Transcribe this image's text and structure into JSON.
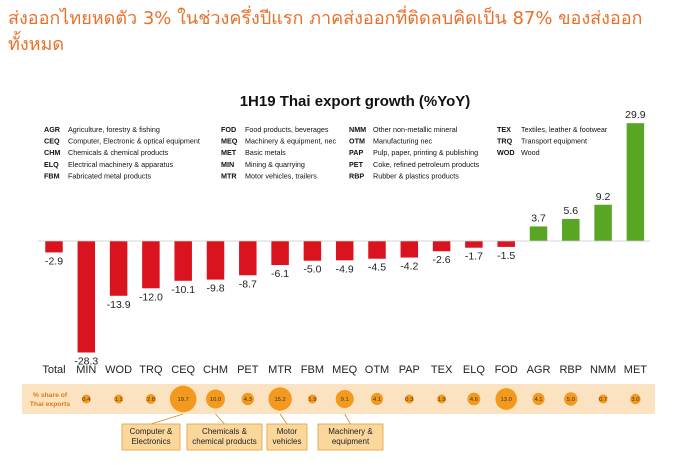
{
  "headline": "ส่งออกไทยหดตัว 3% ในช่วงครึ่งปีแรก ภาคส่งออกที่ติดลบคิดเป็น 87% ของส่งออกทั้งหมด",
  "chart_data": {
    "type": "bar",
    "title": "1H19 Thai export growth (%YoY)",
    "categories": [
      "Total",
      "MIN",
      "WOD",
      "TRQ",
      "CEQ",
      "CHM",
      "PET",
      "MTR",
      "FBM",
      "MEQ",
      "OTM",
      "PAP",
      "TEX",
      "ELQ",
      "FOD",
      "AGR",
      "RBP",
      "NMM",
      "MET"
    ],
    "values": [
      -2.9,
      -28.3,
      -13.9,
      -12.0,
      -10.1,
      -9.8,
      -8.7,
      -6.1,
      -5.0,
      -4.9,
      -4.5,
      -4.2,
      -2.6,
      -1.7,
      -1.5,
      3.7,
      5.6,
      9.2,
      29.9
    ],
    "value_labels": [
      "-2.9",
      "-28.3",
      "-13.9",
      "-12.0",
      "-10.1",
      "-9.8",
      "-8.7",
      "-6.1",
      "-5.0",
      "-4.9",
      "-4.5",
      "-4.2",
      "-2.6",
      "-1.7",
      "-1.5",
      "3.7",
      "5.6",
      "9.2",
      "29.9"
    ],
    "colors": {
      "negative": "#d9141e",
      "positive": "#58a623",
      "bubble": "#f39a1e",
      "band": "#fbe3c2",
      "callout": "#fcd79b"
    },
    "share_label": [
      "% share of",
      "Thai exports"
    ],
    "share_values": [
      0.4,
      1.1,
      2.8,
      19.7,
      10.0,
      4.3,
      15.2,
      1.9,
      9.1,
      4.1,
      0.3,
      1.9,
      4.6,
      13.0,
      4.1,
      5.0,
      0.7,
      3.0
    ],
    "share_labels": [
      "0.4",
      "1.1",
      "2.8",
      "19.7",
      "10.0",
      "4.3",
      "15.2",
      "1.9",
      "9.1",
      "4.1",
      "0.3",
      "1.9",
      "4.6",
      "13.0",
      "4.1",
      "5.0",
      "0.7",
      "3.0"
    ],
    "legend": [
      [
        {
          "code": "AGR",
          "desc": "Agriculture, forestry & fishing"
        },
        {
          "code": "CEQ",
          "desc": "Computer, Electronic & optical equipment"
        },
        {
          "code": "CHM",
          "desc": "Chemicals & chemical products"
        },
        {
          "code": "ELQ",
          "desc": "Electrical machinery & apparatus"
        },
        {
          "code": "FBM",
          "desc": "Fabricated metal products"
        }
      ],
      [
        {
          "code": "FOD",
          "desc": "Food products, beverages"
        },
        {
          "code": "MEQ",
          "desc": "Machinery & equipment, nec"
        },
        {
          "code": "MET",
          "desc": "Basic metals"
        },
        {
          "code": "MIN",
          "desc": "Mining & quarrying"
        },
        {
          "code": "MTR",
          "desc": "Motor vehicles, trailers"
        }
      ],
      [
        {
          "code": "NMM",
          "desc": "Other non-metallic mineral"
        },
        {
          "code": "OTM",
          "desc": "Manufacturing nec"
        },
        {
          "code": "PAP",
          "desc": "Pulp, paper, printing & publishing"
        },
        {
          "code": "PET",
          "desc": "Coke, refined petroleum products"
        },
        {
          "code": "RBP",
          "desc": "Rubber & plastics products"
        }
      ],
      [
        {
          "code": "TEX",
          "desc": "Textiles, leather & footwear"
        },
        {
          "code": "TRQ",
          "desc": "Transport equipment"
        },
        {
          "code": "WOD",
          "desc": "Wood"
        }
      ]
    ],
    "callouts": [
      {
        "lines": [
          "Computer &",
          "Electronics"
        ],
        "category": "CEQ"
      },
      {
        "lines": [
          "Chemicals &",
          "chemical products"
        ],
        "category": "CHM"
      },
      {
        "lines": [
          "Motor",
          "vehicles"
        ],
        "category": "MTR"
      },
      {
        "lines": [
          "Machinery &",
          "equipment"
        ],
        "category": "MEQ"
      }
    ],
    "ylim": [
      -30,
      31
    ],
    "legend_placement": "top-left",
    "grid": false
  }
}
